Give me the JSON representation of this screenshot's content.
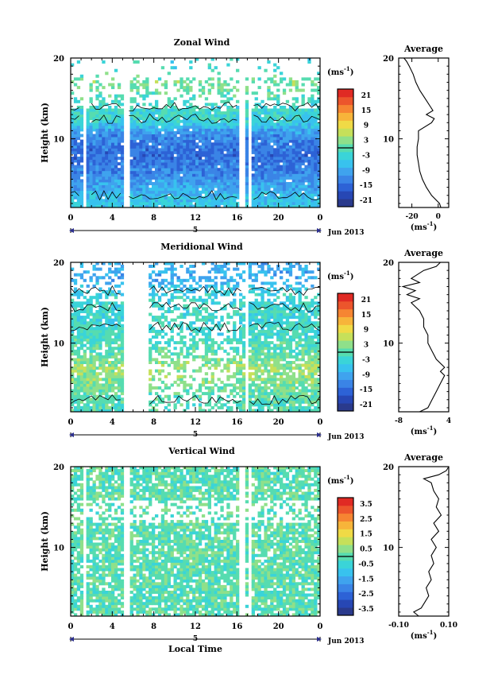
{
  "chart_data": [
    {
      "type": "heatmap",
      "title": "Zonal Wind",
      "ylabel": "Height (km)",
      "y_ticks": [
        "20",
        "10"
      ],
      "x_ticks": [
        "0",
        "4",
        "8",
        "12",
        "16",
        "20",
        "0"
      ],
      "date_marker": "5",
      "date_label": "Jun 2013",
      "ylim": [
        1.5,
        20
      ],
      "xlim": [
        0,
        24
      ],
      "colorbar": {
        "unit_base": "(ms",
        "unit_exp": "-1",
        "unit_close": ")",
        "labels": [
          "21",
          "15",
          "9",
          "3",
          "-3",
          "-9",
          "-15",
          "-21"
        ],
        "range": [
          -24,
          24
        ],
        "colors": [
          "#2a3a8c",
          "#2747b4",
          "#2d62d6",
          "#3a84e6",
          "#3fa3ee",
          "#38c2ee",
          "#3ad4d8",
          "#56dcb0",
          "#8fe08a",
          "#c6e05a",
          "#f0da46",
          "#f7b43a",
          "#f68532",
          "#ec552c",
          "#e02a24"
        ]
      },
      "data_gaps": [
        [
          1.2,
          1.6
        ],
        [
          5.0,
          5.6
        ],
        [
          16.2,
          16.7
        ],
        [
          17.1,
          17.5
        ]
      ],
      "height_profile_ms": [
        [
          2,
          -5
        ],
        [
          3,
          -7
        ],
        [
          4,
          -9
        ],
        [
          5,
          -11
        ],
        [
          6,
          -13
        ],
        [
          7,
          -14
        ],
        [
          8,
          -15
        ],
        [
          9,
          -14
        ],
        [
          10,
          -13
        ],
        [
          11,
          -10
        ],
        [
          12,
          -4
        ],
        [
          13,
          -2
        ],
        [
          14,
          -3
        ],
        [
          15,
          -1
        ],
        [
          16,
          1
        ],
        [
          17,
          2
        ],
        [
          18,
          0
        ],
        [
          19,
          -3
        ]
      ],
      "average_panel": {
        "title": "Average",
        "x_ticks": [
          "-20",
          "0"
        ],
        "xlim": [
          -30,
          8
        ],
        "profile": [
          [
            1.5,
            2
          ],
          [
            2,
            1
          ],
          [
            3,
            -5
          ],
          [
            4,
            -9
          ],
          [
            5,
            -12
          ],
          [
            6,
            -14
          ],
          [
            7,
            -15
          ],
          [
            8,
            -16
          ],
          [
            9,
            -16
          ],
          [
            10,
            -15
          ],
          [
            11,
            -15
          ],
          [
            12,
            -5
          ],
          [
            12.5,
            -3
          ],
          [
            13,
            -9
          ],
          [
            13.5,
            -4
          ],
          [
            14,
            -6
          ],
          [
            15,
            -10
          ],
          [
            16,
            -14
          ],
          [
            17,
            -17
          ],
          [
            18,
            -19
          ],
          [
            19,
            -22
          ],
          [
            19.6,
            -24
          ],
          [
            20,
            -26
          ]
        ]
      }
    },
    {
      "type": "heatmap",
      "title": "Meridional Wind",
      "ylabel": "Height (km)",
      "y_ticks": [
        "20",
        "10"
      ],
      "x_ticks": [
        "0",
        "4",
        "8",
        "12",
        "16",
        "20",
        "0"
      ],
      "date_marker": "5",
      "date_label": "Jun 2013",
      "ylim": [
        1.5,
        20
      ],
      "xlim": [
        0,
        24
      ],
      "colorbar": {
        "unit_base": "(ms",
        "unit_exp": "-1",
        "unit_close": ")",
        "labels": [
          "21",
          "15",
          "9",
          "3",
          "-3",
          "-9",
          "-15",
          "-21"
        ],
        "range": [
          -24,
          24
        ],
        "colors": [
          "#2a3a8c",
          "#2747b4",
          "#2d62d6",
          "#3a84e6",
          "#3fa3ee",
          "#38c2ee",
          "#3ad4d8",
          "#56dcb0",
          "#8fe08a",
          "#c6e05a",
          "#f0da46",
          "#f7b43a",
          "#f68532",
          "#ec552c",
          "#e02a24"
        ]
      },
      "data_gaps": [
        [
          5.2,
          7.4
        ],
        [
          16.8,
          17.1
        ]
      ],
      "height_profile_ms": [
        [
          2,
          -1
        ],
        [
          3,
          0
        ],
        [
          4,
          1
        ],
        [
          5,
          2
        ],
        [
          6,
          3
        ],
        [
          7,
          4
        ],
        [
          8,
          2
        ],
        [
          9,
          0
        ],
        [
          10,
          -1
        ],
        [
          11,
          -2
        ],
        [
          12,
          -2
        ],
        [
          13,
          -3
        ],
        [
          14,
          -2
        ],
        [
          15,
          -3
        ],
        [
          16,
          -4
        ],
        [
          17,
          -6
        ],
        [
          18,
          -9
        ],
        [
          19,
          -8
        ]
      ],
      "average_panel": {
        "title": "Average",
        "x_ticks": [
          "-8",
          "4"
        ],
        "xlim": [
          -8,
          4
        ],
        "profile": [
          [
            1.5,
            -3
          ],
          [
            2,
            -1
          ],
          [
            3,
            0
          ],
          [
            4,
            1
          ],
          [
            5,
            2
          ],
          [
            6,
            3
          ],
          [
            6.5,
            2
          ],
          [
            7,
            3
          ],
          [
            8,
            1
          ],
          [
            9,
            0
          ],
          [
            10,
            -1
          ],
          [
            11,
            -1
          ],
          [
            12,
            -2
          ],
          [
            13,
            -2
          ],
          [
            14,
            -3
          ],
          [
            15,
            -5
          ],
          [
            15.5,
            -3
          ],
          [
            16,
            -6
          ],
          [
            16.5,
            -4
          ],
          [
            17,
            -7
          ],
          [
            17.5,
            -3
          ],
          [
            18,
            -5
          ],
          [
            19,
            -2
          ],
          [
            19.5,
            1
          ],
          [
            20,
            2
          ]
        ]
      }
    },
    {
      "type": "heatmap",
      "title": "Vertical Wind",
      "ylabel": "Height (km)",
      "xlabel": "Local Time",
      "y_ticks": [
        "20",
        "10"
      ],
      "x_ticks": [
        "0",
        "4",
        "8",
        "12",
        "16",
        "20",
        "0"
      ],
      "date_marker": "5",
      "date_label": "Jun 2013",
      "ylim": [
        1.5,
        20
      ],
      "xlim": [
        0,
        24
      ],
      "colorbar": {
        "unit_base": "(ms",
        "unit_exp": "-1",
        "unit_close": ")",
        "labels": [
          "3.5",
          "2.5",
          "1.5",
          "0.5",
          "-0.5",
          "-1.5",
          "-2.5",
          "-3.5"
        ],
        "range": [
          -4,
          4
        ],
        "colors": [
          "#2a3a8c",
          "#2747b4",
          "#2d62d6",
          "#3a84e6",
          "#3fa3ee",
          "#38c2ee",
          "#3ad4d8",
          "#56dcb0",
          "#8fe08a",
          "#c6e05a",
          "#f0da46",
          "#f7b43a",
          "#f68532",
          "#ec552c",
          "#e02a24"
        ]
      },
      "data_gaps": [
        [
          1.2,
          1.6
        ],
        [
          5.0,
          5.6
        ],
        [
          16.2,
          16.7
        ],
        [
          17.1,
          17.5
        ]
      ],
      "height_profile_ms": [
        [
          2,
          0.02
        ],
        [
          5,
          0.03
        ],
        [
          10,
          0.04
        ],
        [
          15,
          0.05
        ],
        [
          19,
          0.03
        ]
      ],
      "average_panel": {
        "title": "Average",
        "x_ticks": [
          "-0.10",
          "0.10"
        ],
        "xlim": [
          -0.1,
          0.1
        ],
        "profile": [
          [
            1.5,
            -0.02
          ],
          [
            2,
            -0.04
          ],
          [
            2.5,
            -0.01
          ],
          [
            3,
            0.0
          ],
          [
            4,
            0.02
          ],
          [
            5,
            0.01
          ],
          [
            6,
            0.03
          ],
          [
            7,
            0.02
          ],
          [
            8,
            0.04
          ],
          [
            9,
            0.03
          ],
          [
            10,
            0.05
          ],
          [
            11,
            0.03
          ],
          [
            12,
            0.06
          ],
          [
            13,
            0.04
          ],
          [
            14,
            0.07
          ],
          [
            15,
            0.05
          ],
          [
            16,
            0.06
          ],
          [
            17,
            0.04
          ],
          [
            18,
            0.03
          ],
          [
            18.5,
            0.0
          ],
          [
            19,
            0.06
          ],
          [
            19.5,
            0.09
          ],
          [
            20,
            0.1
          ]
        ]
      }
    }
  ]
}
